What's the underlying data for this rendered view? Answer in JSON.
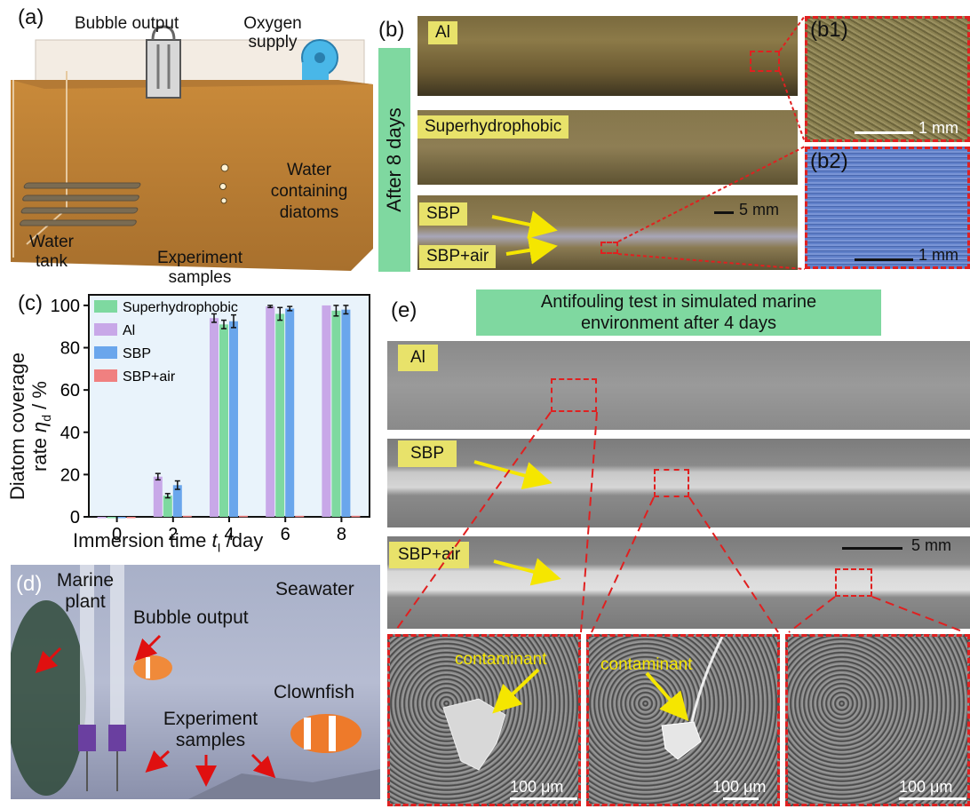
{
  "panel_a": {
    "label": "(a)",
    "bubble_output": "Bubble output",
    "oxygen_supply": [
      "Oxygen",
      "supply"
    ],
    "water_diatoms": [
      "Water",
      "containing",
      "diatoms"
    ],
    "water_tank": [
      "Water",
      "tank"
    ],
    "samples": [
      "Experiment",
      "samples"
    ]
  },
  "panel_b": {
    "label": "(b)",
    "side_label": "After 8 days",
    "strip_labels": [
      "Al",
      "Superhydrophobic",
      "SBP",
      "SBP+air"
    ],
    "scale": "5 mm",
    "b1": {
      "label": "(b1)",
      "scale": "1 mm"
    },
    "b2": {
      "label": "(b2)",
      "scale": "1 mm"
    }
  },
  "panel_c": {
    "label": "(c)"
  },
  "chart_data": {
    "type": "bar",
    "categories": [
      "0",
      "2",
      "4",
      "6",
      "8"
    ],
    "series": [
      {
        "name": "Al",
        "values": [
          0,
          19,
          94,
          99.5,
          100
        ],
        "errors": [
          0,
          1.5,
          2,
          0.5,
          0
        ],
        "color": "#c8a8e8"
      },
      {
        "name": "Superhydrophobic",
        "values": [
          0,
          10,
          91,
          96,
          97.5
        ],
        "errors": [
          0,
          1,
          2,
          3,
          2.5
        ],
        "color": "#7ed9a0"
      },
      {
        "name": "SBP",
        "values": [
          0,
          15,
          92.5,
          98.5,
          98
        ],
        "errors": [
          0,
          2,
          3,
          1,
          2
        ],
        "color": "#6aa6ec"
      },
      {
        "name": "SBP+air",
        "values": [
          0,
          0.5,
          0.5,
          0.5,
          0.5
        ],
        "errors": [
          0,
          0,
          0,
          0,
          0
        ],
        "color": "#f08080"
      }
    ],
    "legend_order": [
      "Superhydrophobic",
      "Al",
      "SBP",
      "SBP+air"
    ],
    "xlabel_main": "Immersion time ",
    "xlabel_sym": "t",
    "xlabel_sub": "I",
    "xlabel_unit": " /day",
    "ylabel_line1": "Diatom coverage",
    "ylabel_line2_pre": "rate ",
    "ylabel_sym": "η",
    "ylabel_sub": "d",
    "ylabel_unit": " / %",
    "yticks": [
      "0",
      "20",
      "40",
      "60",
      "80",
      "100"
    ],
    "ylim": [
      0,
      105
    ],
    "legend": "top-left"
  },
  "panel_d": {
    "label": "(d)",
    "marine_plant": [
      "Marine",
      "plant"
    ],
    "bubble_output": "Bubble output",
    "seawater": "Seawater",
    "clownfish": "Clownfish",
    "samples": [
      "Experiment",
      "samples"
    ]
  },
  "panel_e": {
    "label": "(e)",
    "title": [
      "Antifouling test in simulated marine",
      "environment after 4 days"
    ],
    "strip_labels": [
      "Al",
      "SBP",
      "SBP+air"
    ],
    "scale": "5 mm",
    "contaminant": "contaminant",
    "sem_scales": [
      "100 μm",
      "100 μm",
      "100 μm"
    ]
  }
}
